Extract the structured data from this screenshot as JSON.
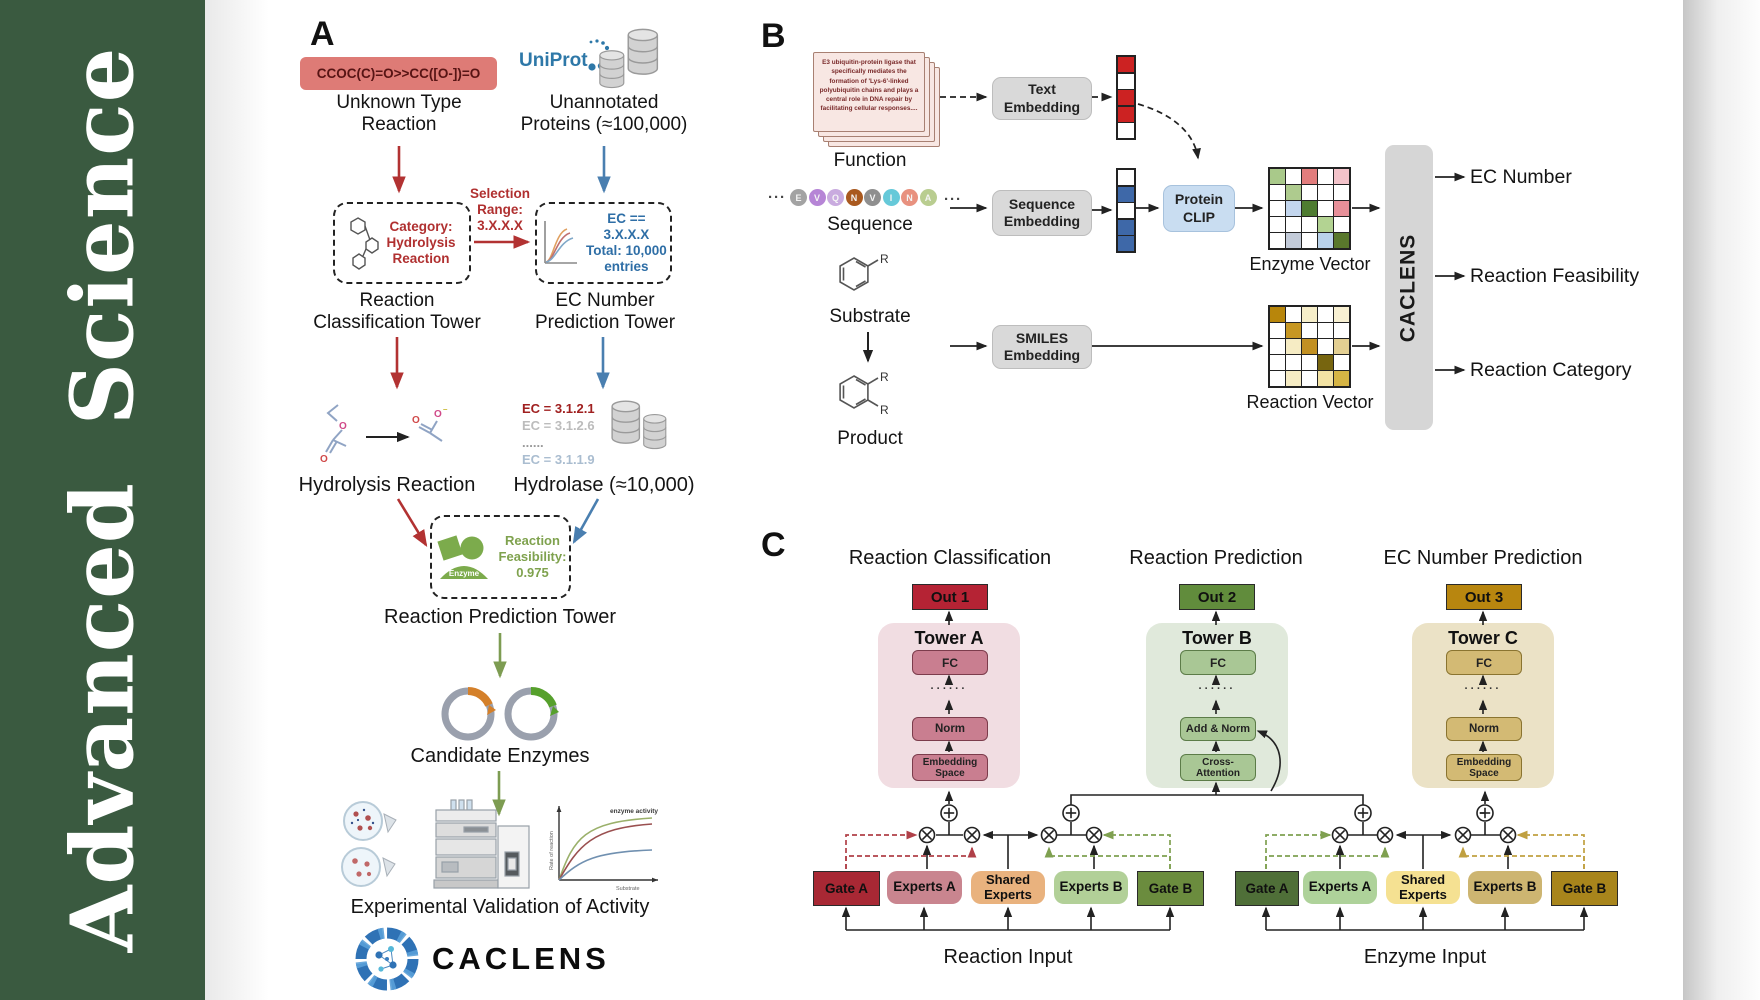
{
  "journal": {
    "name": "Advanced Science",
    "bg_color": "#3a5a40"
  },
  "panelA": {
    "label": "A",
    "smiles": "CCOC(C)=O>>CC([O-])=O",
    "unknown_reaction": "Unknown Type\nReaction",
    "uniprot": "UniProt",
    "unannotated": "Unannotated\nProteins (≈100,000)",
    "selection": "Selection\nRange:\n3.X.X.X",
    "category": "Category:\nHydrolysis\nReaction",
    "ec_filter": "EC == 3.X.X.X\nTotal: 10,000\nentries",
    "classification_tower": "Reaction\nClassification Tower",
    "ec_tower": "EC Number\nPrediction Tower",
    "hydrolysis": "Hydrolysis Reaction",
    "ec_list": [
      {
        "text": "EC = 3.1.2.1",
        "color": "#a02020"
      },
      {
        "text": "EC = 3.1.2.6",
        "color": "#bcbcbc"
      },
      {
        "text": "......",
        "color": "#9a9a9a"
      },
      {
        "text": "EC = 3.1.1.9",
        "color": "#aabdd0"
      }
    ],
    "hydrolase": "Hydrolase (≈10,000)",
    "enzyme_badge": "Enzyme",
    "feasibility": "Reaction\nFeasibility:\n0.975",
    "prediction_tower": "Reaction Prediction Tower",
    "candidate": "Candidate Enzymes",
    "graph": {
      "curve_label": "enzyme activity",
      "ylabel": "Rate of reaction",
      "xlabel": "Substrate"
    },
    "validation": "Experimental Validation of Activity",
    "brand": "CACLENS"
  },
  "panelB": {
    "label": "B",
    "function_text": "E3 ubiquitin-protein ligase that specifically mediates the formation of 'Lys-6'-linked polyubiquitin chains and plays a central role in DNA repair by facilitating cellular responses....",
    "function_label": "Function",
    "ellipsis": "···",
    "sequence": [
      {
        "ch": "E",
        "color": "#a3a3a3"
      },
      {
        "ch": "V",
        "color": "#b685d6"
      },
      {
        "ch": "Q",
        "color": "#c9abdf"
      },
      {
        "ch": "N",
        "color": "#a9591f"
      },
      {
        "ch": "V",
        "color": "#8f8f8f"
      },
      {
        "ch": "I",
        "color": "#66c9d9"
      },
      {
        "ch": "N",
        "color": "#e8917f"
      },
      {
        "ch": "A",
        "color": "#b9cd90"
      }
    ],
    "sequence_label": "Sequence",
    "substrate_label": "Substrate",
    "product_label": "Product",
    "r_label": "R",
    "text_embedding": "Text\nEmbedding",
    "sequence_embedding": "Sequence\nEmbedding",
    "smiles_embedding": "SMILES\nEmbedding",
    "protein_clip": "Protein\nCLIP",
    "text_vector": [
      "#cc2222",
      "#ffffff",
      "#cc2222",
      "#cc2222",
      "#ffffff"
    ],
    "sequence_vector": [
      "#ffffff",
      "#3e68a8",
      "#ffffff",
      "#3e68a8",
      "#3e68a8"
    ],
    "enzyme_matrix": [
      [
        "#a9c98a",
        "#ffffff",
        "#e27d7d",
        "#ffffff",
        "#f3c3ca"
      ],
      [
        "#ffffff",
        "#aecb8e",
        "#ffffff",
        "#ffffff",
        "#ffffff"
      ],
      [
        "#ffffff",
        "#c3d6ee",
        "#4e7c31",
        "#ffffff",
        "#e79099"
      ],
      [
        "#ffffff",
        "#ffffff",
        "#ffffff",
        "#b3d392",
        "#ffffff"
      ],
      [
        "#ffffff",
        "#c3cbd9",
        "#ffffff",
        "#b9d2ea",
        "#59782c"
      ]
    ],
    "reaction_matrix": [
      [
        "#b8860b",
        "#ffffff",
        "#f6eec9",
        "#ffffff",
        "#f8f0d2"
      ],
      [
        "#ffffff",
        "#c79722",
        "#ffffff",
        "#ffffff",
        "#ffffff"
      ],
      [
        "#ffffff",
        "#f6ecc4",
        "#c29022",
        "#ffffff",
        "#e3cf92"
      ],
      [
        "#ffffff",
        "#ffffff",
        "#ffffff",
        "#77650f",
        "#ffffff"
      ],
      [
        "#ffffff",
        "#f6ecc4",
        "#ffffff",
        "#f3e3a4",
        "#d6b545"
      ]
    ],
    "enzyme_vector_label": "Enzyme Vector",
    "reaction_vector_label": "Reaction Vector",
    "caclens": "CACLENS",
    "outputs": [
      "EC Number",
      "Reaction Feasibility",
      "Reaction Category"
    ]
  },
  "panelC": {
    "label": "C",
    "headings": [
      "Reaction Classification",
      "Reaction Prediction",
      "EC Number Prediction"
    ],
    "outs": [
      "Out 1",
      "Out 2",
      "Out 3"
    ],
    "towers": [
      {
        "title": "Tower A",
        "fc": "FC",
        "dots": "······",
        "mid": "Norm",
        "bottom": "Embedding\nSpace"
      },
      {
        "title": "Tower B",
        "fc": "FC",
        "dots": "······",
        "mid": "Add & Norm",
        "bottom": "Cross-\nAttention"
      },
      {
        "title": "Tower C",
        "fc": "FC",
        "dots": "······",
        "mid": "Norm",
        "bottom": "Embedding\nSpace"
      }
    ],
    "reaction_group": {
      "gate_a": "Gate A",
      "experts_a": "Experts A",
      "shared": "Shared\nExperts",
      "experts_b": "Experts B",
      "gate_b": "Gate B",
      "input": "Reaction Input"
    },
    "enzyme_group": {
      "gate_a": "Gate A",
      "experts_a": "Experts A",
      "shared": "Shared\nExperts",
      "experts_b": "Experts B",
      "gate_b": "Gate B",
      "input": "Enzyme Input"
    }
  }
}
